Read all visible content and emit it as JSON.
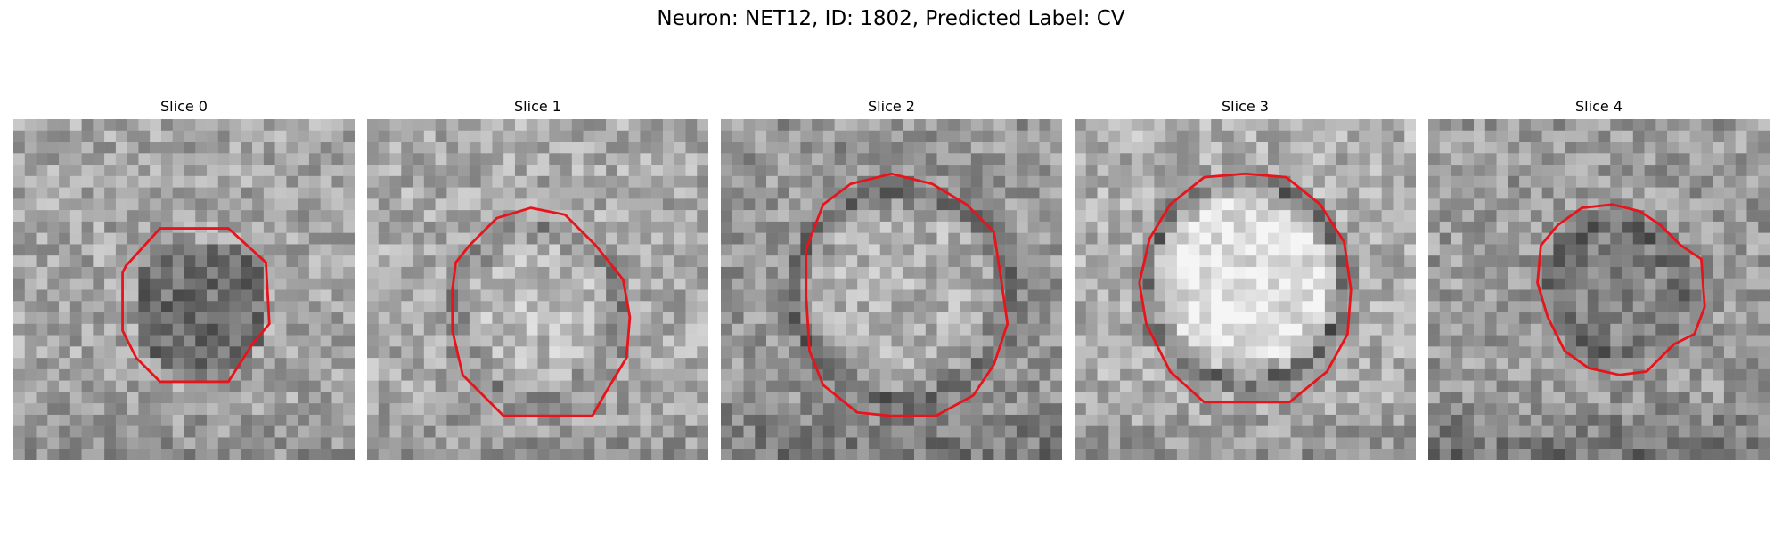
{
  "figure": {
    "title": "Neuron: NET12, ID: 1802, Predicted Label: CV",
    "contour_color": "#e8141c",
    "slices": [
      {
        "label": "Slice 0",
        "contour": [
          [
            0.33,
            0.43
          ],
          [
            0.43,
            0.32
          ],
          [
            0.63,
            0.32
          ],
          [
            0.74,
            0.42
          ],
          [
            0.75,
            0.6
          ],
          [
            0.7,
            0.66
          ],
          [
            0.63,
            0.77
          ],
          [
            0.53,
            0.77
          ],
          [
            0.43,
            0.77
          ],
          [
            0.36,
            0.7
          ],
          [
            0.32,
            0.62
          ],
          [
            0.32,
            0.45
          ]
        ]
      },
      {
        "label": "Slice 1",
        "contour": [
          [
            0.26,
            0.42
          ],
          [
            0.3,
            0.37
          ],
          [
            0.38,
            0.29
          ],
          [
            0.48,
            0.26
          ],
          [
            0.58,
            0.28
          ],
          [
            0.67,
            0.37
          ],
          [
            0.75,
            0.47
          ],
          [
            0.77,
            0.58
          ],
          [
            0.76,
            0.7
          ],
          [
            0.7,
            0.8
          ],
          [
            0.66,
            0.87
          ],
          [
            0.5,
            0.87
          ],
          [
            0.4,
            0.87
          ],
          [
            0.28,
            0.75
          ],
          [
            0.25,
            0.62
          ],
          [
            0.25,
            0.5
          ]
        ]
      },
      {
        "label": "Slice 2",
        "contour": [
          [
            0.25,
            0.38
          ],
          [
            0.3,
            0.25
          ],
          [
            0.38,
            0.19
          ],
          [
            0.5,
            0.16
          ],
          [
            0.62,
            0.19
          ],
          [
            0.72,
            0.25
          ],
          [
            0.8,
            0.33
          ],
          [
            0.82,
            0.46
          ],
          [
            0.84,
            0.6
          ],
          [
            0.8,
            0.72
          ],
          [
            0.74,
            0.81
          ],
          [
            0.63,
            0.87
          ],
          [
            0.5,
            0.87
          ],
          [
            0.4,
            0.86
          ],
          [
            0.3,
            0.78
          ],
          [
            0.26,
            0.68
          ],
          [
            0.25,
            0.52
          ]
        ]
      },
      {
        "label": "Slice 3",
        "contour": [
          [
            0.22,
            0.35
          ],
          [
            0.28,
            0.25
          ],
          [
            0.38,
            0.17
          ],
          [
            0.5,
            0.16
          ],
          [
            0.62,
            0.17
          ],
          [
            0.72,
            0.25
          ],
          [
            0.79,
            0.36
          ],
          [
            0.81,
            0.5
          ],
          [
            0.8,
            0.63
          ],
          [
            0.74,
            0.74
          ],
          [
            0.63,
            0.83
          ],
          [
            0.5,
            0.83
          ],
          [
            0.38,
            0.83
          ],
          [
            0.28,
            0.74
          ],
          [
            0.21,
            0.6
          ],
          [
            0.19,
            0.48
          ]
        ]
      },
      {
        "label": "Slice 4",
        "contour": [
          [
            0.33,
            0.37
          ],
          [
            0.38,
            0.31
          ],
          [
            0.45,
            0.26
          ],
          [
            0.54,
            0.25
          ],
          [
            0.62,
            0.27
          ],
          [
            0.68,
            0.31
          ],
          [
            0.74,
            0.37
          ],
          [
            0.8,
            0.41
          ],
          [
            0.81,
            0.55
          ],
          [
            0.78,
            0.63
          ],
          [
            0.72,
            0.66
          ],
          [
            0.64,
            0.74
          ],
          [
            0.56,
            0.75
          ],
          [
            0.47,
            0.73
          ],
          [
            0.4,
            0.68
          ],
          [
            0.35,
            0.58
          ],
          [
            0.32,
            0.48
          ]
        ]
      }
    ]
  }
}
